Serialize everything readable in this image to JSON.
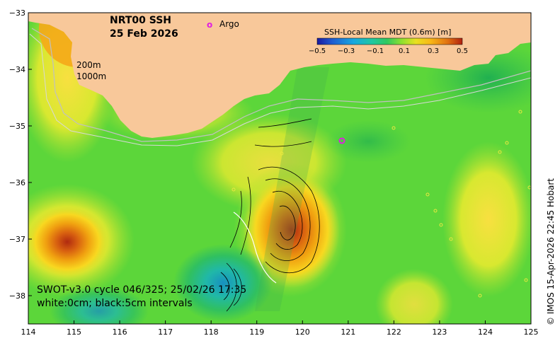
{
  "map": {
    "title_line1": "NRT00 SSH",
    "title_line2": "25 Feb 2026",
    "legend_argo": "Argo",
    "argo_marker": "o",
    "depth_200": "200m",
    "depth_1000": "1000m",
    "annotation_line1": "SWOT-v3.0 cycle 046/325; 25/02/26 17:35",
    "annotation_line2": "white:0cm; black:5cm intervals",
    "credit": "© IMOS 15-Apr-2026 22:45 Hobart",
    "colorbar": {
      "label": "SSH-Local Mean MDT (0.6m) [m]",
      "ticks": [
        "−0.5",
        "−0.3",
        "−0.1",
        "0.1",
        "0.3",
        "0.5"
      ],
      "range": [
        -0.5,
        0.5
      ],
      "colors": [
        "#1a1aa0",
        "#1f5ad0",
        "#18a8e0",
        "#20c8a0",
        "#30c860",
        "#60d830",
        "#c8e030",
        "#f8d820",
        "#f0a010",
        "#d86010",
        "#b02010"
      ]
    },
    "lon_ticks": [
      "114",
      "115",
      "116",
      "117",
      "118",
      "119",
      "120",
      "121",
      "122",
      "123",
      "124",
      "125"
    ],
    "lat_ticks": [
      "−33",
      "−34",
      "−35",
      "−36",
      "−37",
      "−38"
    ],
    "lon_range": [
      114,
      125
    ],
    "lat_range": [
      -33,
      -38.5
    ],
    "colors": {
      "land": "#f8c89a",
      "ocean_base": "#5cd63a",
      "argo": "#e020e0"
    }
  }
}
